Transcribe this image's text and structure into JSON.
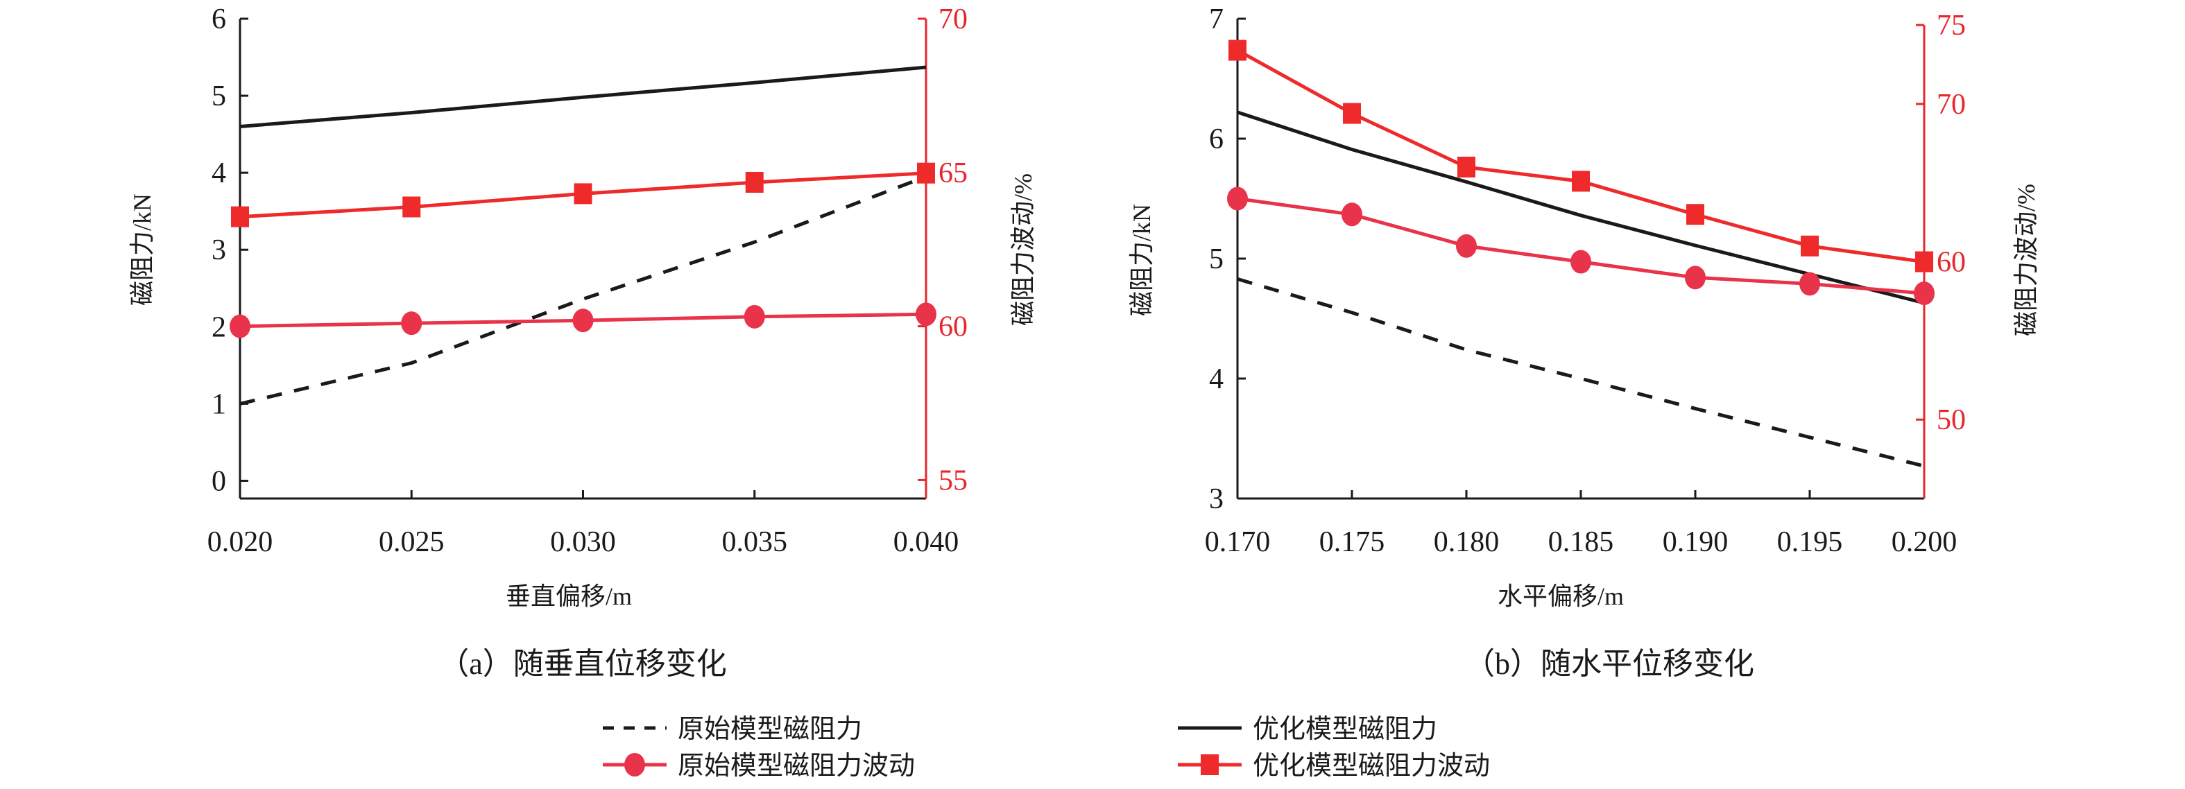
{
  "colors": {
    "axis": "#1a1a1a",
    "red_axis": "#e8262b",
    "circle_series": "#e8334a",
    "square_series": "#ee2a2a",
    "black": "#1a1a1a"
  },
  "legend": [
    {
      "label": "原始模型磁阻力",
      "style": "dashed-black"
    },
    {
      "label": "优化模型磁阻力",
      "style": "solid-black"
    },
    {
      "label": "原始模型磁阻力波动",
      "style": "red-circle"
    },
    {
      "label": "优化模型磁阻力波动",
      "style": "red-square"
    }
  ],
  "chart_data": [
    {
      "type": "line",
      "caption": "（a）随垂直位移变化",
      "xlabel": "垂直偏移/m",
      "ylabel": "磁阻力/kN",
      "y2label": "磁阻力波动/%",
      "x": [
        0.02,
        0.025,
        0.03,
        0.035,
        0.04
      ],
      "xticks": [
        "0.020",
        "0.025",
        "0.030",
        "0.035",
        "0.040"
      ],
      "ylim": [
        -0.23,
        6
      ],
      "yticks": [
        0,
        1,
        2,
        3,
        4,
        5,
        6
      ],
      "y2lim": [
        54.4,
        70
      ],
      "y2ticks": [
        55,
        60,
        65,
        70
      ],
      "series": [
        {
          "name": "原始模型磁阻力",
          "axis": "left",
          "style": "dashed",
          "values": [
            1.0,
            1.53,
            2.36,
            3.1,
            3.95
          ]
        },
        {
          "name": "优化模型磁阻力",
          "axis": "left",
          "style": "solid",
          "values": [
            4.6,
            4.78,
            4.98,
            5.17,
            5.37
          ]
        },
        {
          "name": "原始模型磁阻力波动",
          "axis": "right",
          "style": "circle",
          "values": [
            60.0,
            60.1,
            60.19,
            60.31,
            60.39
          ]
        },
        {
          "name": "优化模型磁阻力波动",
          "axis": "right",
          "style": "square",
          "values": [
            63.56,
            63.88,
            64.31,
            64.68,
            64.98
          ]
        }
      ]
    },
    {
      "type": "line",
      "caption": "（b）随水平位移变化",
      "xlabel": "水平偏移/m",
      "ylabel": "磁阻力/kN",
      "y2label": "磁阻力波动/%",
      "x": [
        0.17,
        0.175,
        0.18,
        0.185,
        0.19,
        0.195,
        0.2
      ],
      "xticks": [
        "0.170",
        "0.175",
        "0.180",
        "0.185",
        "0.190",
        "0.195",
        "0.200"
      ],
      "ylim": [
        3,
        7
      ],
      "yticks": [
        3,
        4,
        5,
        6,
        7
      ],
      "y2lim": [
        45,
        75.4
      ],
      "y2ticks": [
        50,
        60,
        70,
        75
      ],
      "series": [
        {
          "name": "原始模型磁阻力",
          "axis": "left",
          "style": "dashed",
          "values": [
            4.83,
            4.55,
            4.24,
            4.0,
            3.75,
            3.51,
            3.27
          ]
        },
        {
          "name": "优化模型磁阻力",
          "axis": "left",
          "style": "solid",
          "values": [
            6.22,
            5.91,
            5.64,
            5.36,
            5.11,
            4.87,
            4.63
          ]
        },
        {
          "name": "原始模型磁阻力波动",
          "axis": "right",
          "style": "circle",
          "values": [
            64.0,
            63.0,
            61.0,
            60.0,
            59.0,
            58.6,
            58.0
          ]
        },
        {
          "name": "优化模型磁阻力波动",
          "axis": "right",
          "style": "square",
          "values": [
            73.4,
            69.4,
            66.0,
            65.1,
            63.0,
            61.0,
            60.0
          ]
        }
      ]
    }
  ]
}
